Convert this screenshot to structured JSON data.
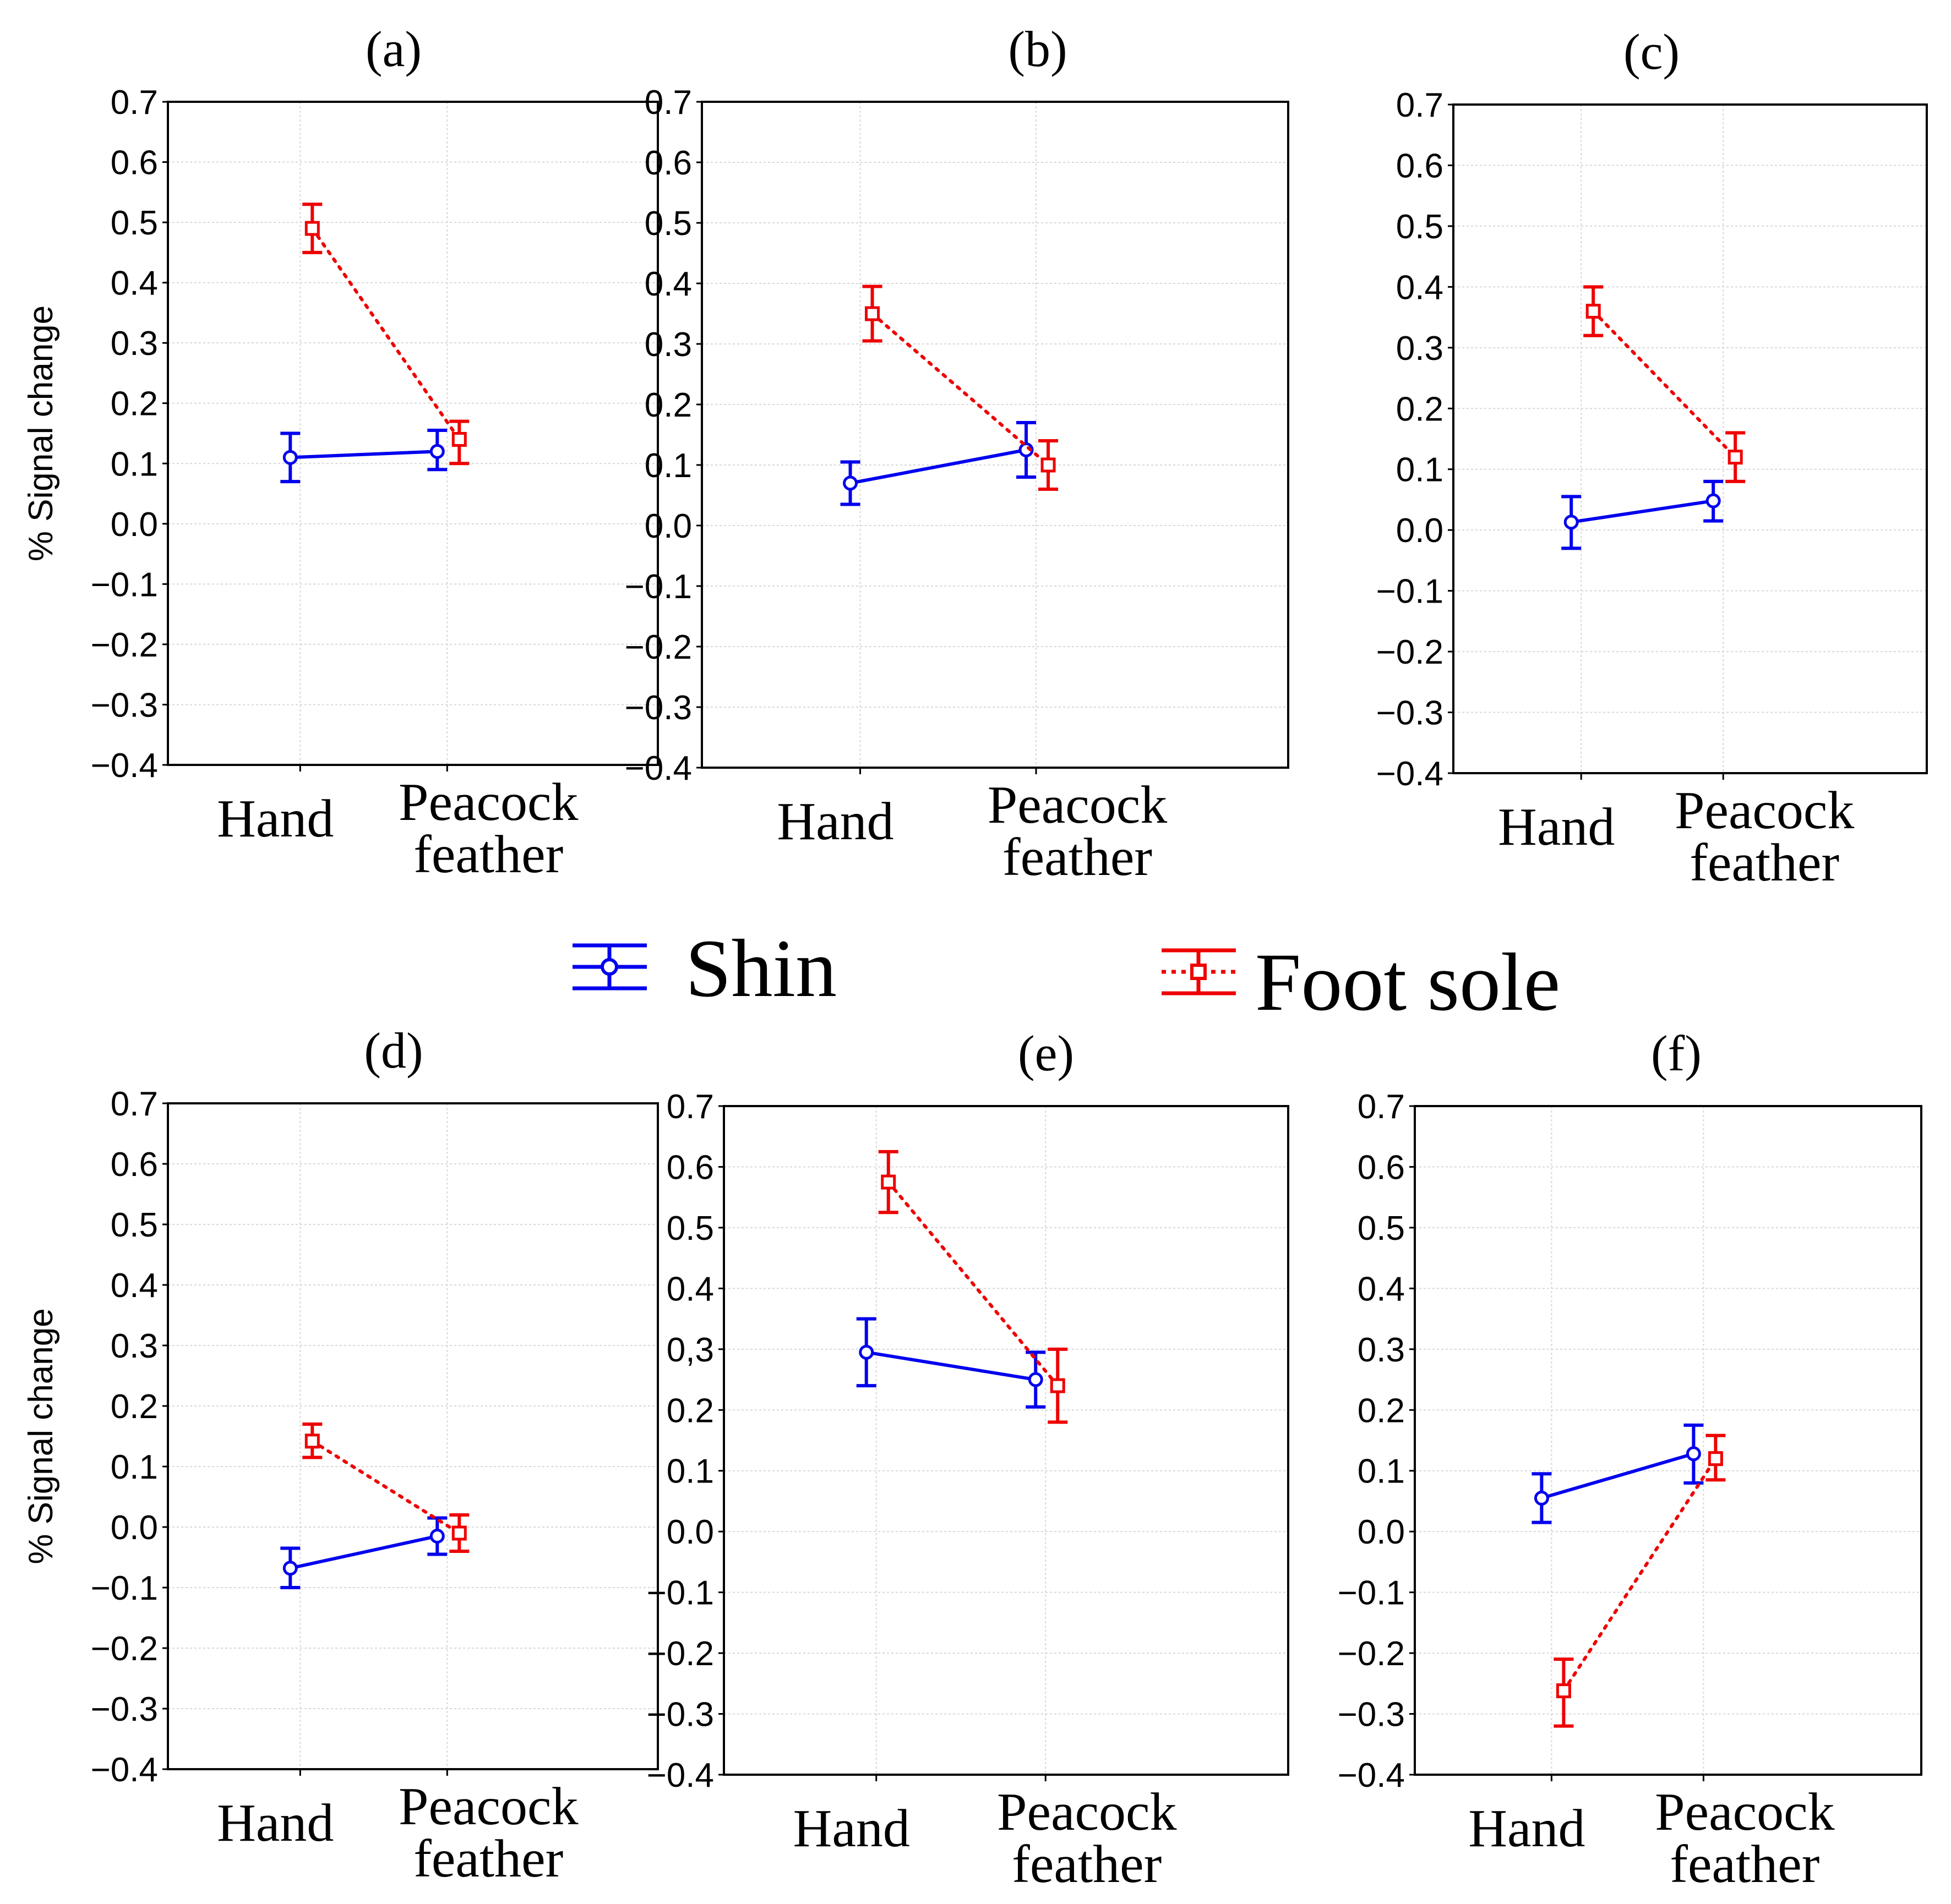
{
  "legend": {
    "series": [
      {
        "name": "Shin",
        "color": "#0000ee",
        "marker": "circle",
        "line": "solid"
      },
      {
        "name": "Foot sole",
        "color": "#ee0000",
        "marker": "square",
        "line": "dotted"
      }
    ]
  },
  "chart_data": [
    {
      "type": "line",
      "title": "(a)",
      "ylabel": "% Signal change",
      "categories": [
        "Hand",
        "Peacock feather"
      ],
      "ylim": [
        -0.4,
        0.7
      ],
      "yticks": [
        "0.7",
        "0.6",
        "0.5",
        "0.4",
        "0.3",
        "0.2",
        "0.1",
        "0.0",
        "−0.1",
        "−0.2",
        "−0.3",
        "−0.4"
      ],
      "series": [
        {
          "name": "Shin",
          "values": [
            0.11,
            0.12
          ],
          "err_low": [
            0.07,
            0.09
          ],
          "err_high": [
            0.15,
            0.155
          ]
        },
        {
          "name": "Foot sole",
          "values": [
            0.49,
            0.14
          ],
          "err_low": [
            0.45,
            0.1
          ],
          "err_high": [
            0.53,
            0.17
          ]
        }
      ]
    },
    {
      "type": "line",
      "title": "(b)",
      "ylabel": "",
      "categories": [
        "Hand",
        "Peacock feather"
      ],
      "ylim": [
        -0.4,
        0.7
      ],
      "yticks": [
        "0.7",
        "0.6",
        "0.5",
        "0.4",
        "0.3",
        "0.2",
        "0.1",
        "0.0",
        "−0.1",
        "−0.2",
        "−0.3",
        "−0.4"
      ],
      "series": [
        {
          "name": "Shin",
          "values": [
            0.07,
            0.125
          ],
          "err_low": [
            0.035,
            0.08
          ],
          "err_high": [
            0.105,
            0.17
          ]
        },
        {
          "name": "Foot sole",
          "values": [
            0.35,
            0.1
          ],
          "err_low": [
            0.305,
            0.06
          ],
          "err_high": [
            0.395,
            0.14
          ]
        }
      ]
    },
    {
      "type": "line",
      "title": "(c)",
      "ylabel": "",
      "categories": [
        "Hand",
        "Peacock feather"
      ],
      "ylim": [
        -0.4,
        0.7
      ],
      "yticks": [
        "0.7",
        "0.6",
        "0.5",
        "0.4",
        "0.3",
        "0.2",
        "0.1",
        "0.0",
        "−0.1",
        "−0.2",
        "−0.3",
        "−0.4"
      ],
      "series": [
        {
          "name": "Shin",
          "values": [
            0.013,
            0.048
          ],
          "err_low": [
            -0.03,
            0.015
          ],
          "err_high": [
            0.055,
            0.08
          ]
        },
        {
          "name": "Foot sole",
          "values": [
            0.36,
            0.12
          ],
          "err_low": [
            0.32,
            0.08
          ],
          "err_high": [
            0.4,
            0.16
          ]
        }
      ]
    },
    {
      "type": "line",
      "title": "(d)",
      "ylabel": "% Signal change",
      "categories": [
        "Hand",
        "Peacock feather"
      ],
      "ylim": [
        -0.4,
        0.7
      ],
      "yticks": [
        "0.7",
        "0.6",
        "0.5",
        "0.4",
        "0.3",
        "0.2",
        "0.1",
        "0.0",
        "−0.1",
        "−0.2",
        "−0.3",
        "−0.4"
      ],
      "series": [
        {
          "name": "Shin",
          "values": [
            -0.068,
            -0.015
          ],
          "err_low": [
            -0.1,
            -0.045
          ],
          "err_high": [
            -0.035,
            0.015
          ]
        },
        {
          "name": "Foot sole",
          "values": [
            0.142,
            -0.01
          ],
          "err_low": [
            0.115,
            -0.04
          ],
          "err_high": [
            0.17,
            0.02
          ]
        }
      ]
    },
    {
      "type": "line",
      "title": "(e)",
      "ylabel": "",
      "categories": [
        "Hand",
        "Peacock feather"
      ],
      "ylim": [
        -0.4,
        0.7
      ],
      "yticks": [
        "0.7",
        "0.6",
        "0.5",
        "0.4",
        "0,3",
        "0.2",
        "0.1",
        "0.0",
        "−0.1",
        "−0.2",
        "−0.3",
        "−0.4"
      ],
      "series": [
        {
          "name": "Shin",
          "values": [
            0.295,
            0.25
          ],
          "err_low": [
            0.24,
            0.205
          ],
          "err_high": [
            0.35,
            0.295
          ]
        },
        {
          "name": "Foot sole",
          "values": [
            0.575,
            0.24
          ],
          "err_low": [
            0.525,
            0.18
          ],
          "err_high": [
            0.625,
            0.3
          ]
        }
      ]
    },
    {
      "type": "line",
      "title": "(f)",
      "ylabel": "",
      "categories": [
        "Hand",
        "Peacock feather"
      ],
      "ylim": [
        -0.4,
        0.7
      ],
      "yticks": [
        "0.7",
        "0.6",
        "0.5",
        "0.4",
        "0.3",
        "0.2",
        "0.1",
        "0.0",
        "−0.1",
        "−0.2",
        "−0.3",
        "−0.4"
      ],
      "series": [
        {
          "name": "Shin",
          "values": [
            0.055,
            0.128
          ],
          "err_low": [
            0.015,
            0.08
          ],
          "err_high": [
            0.095,
            0.175
          ]
        },
        {
          "name": "Foot sole",
          "values": [
            -0.262,
            0.12
          ],
          "err_low": [
            -0.32,
            0.085
          ],
          "err_high": [
            -0.21,
            0.158
          ]
        }
      ]
    }
  ]
}
